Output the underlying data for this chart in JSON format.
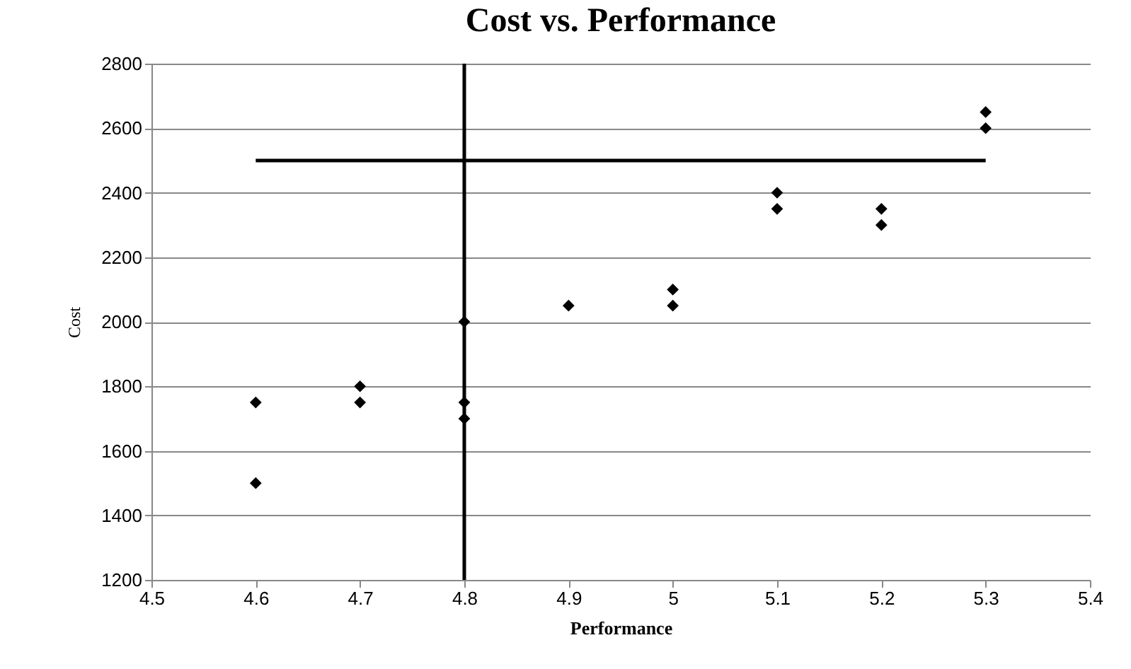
{
  "chart_data": {
    "type": "scatter",
    "title": "Cost vs. Performance",
    "xlabel": "Performance",
    "ylabel": "Cost",
    "xlim": [
      4.5,
      5.4
    ],
    "xticks": [
      4.5,
      4.6,
      4.7,
      4.8,
      4.9,
      5,
      5.1,
      5.2,
      5.3,
      5.4
    ],
    "ylim": [
      1200,
      2800
    ],
    "yticks": [
      1200,
      1400,
      1600,
      1800,
      2000,
      2200,
      2400,
      2600,
      2800
    ],
    "grid": "y",
    "marker": "diamond",
    "series": [
      {
        "color": "#000000",
        "x": [
          4.6,
          4.6,
          4.7,
          4.7,
          4.8,
          4.8,
          4.8,
          4.9,
          5,
          5,
          5.1,
          5.1,
          5.2,
          5.2,
          5.3,
          5.3
        ],
        "values": [
          1750,
          1500,
          1800,
          1750,
          2000,
          1750,
          1700,
          2050,
          2100,
          2050,
          2400,
          2350,
          2350,
          2300,
          2650,
          2600
        ]
      },
      {
        "type": "line",
        "marker": "none",
        "color": "#000000",
        "x": [
          4.6,
          5.3
        ],
        "values": [
          2500,
          2500
        ]
      }
    ],
    "ref_lines": [
      {
        "axis": "x",
        "value": 4.8,
        "color": "#000000"
      }
    ]
  }
}
